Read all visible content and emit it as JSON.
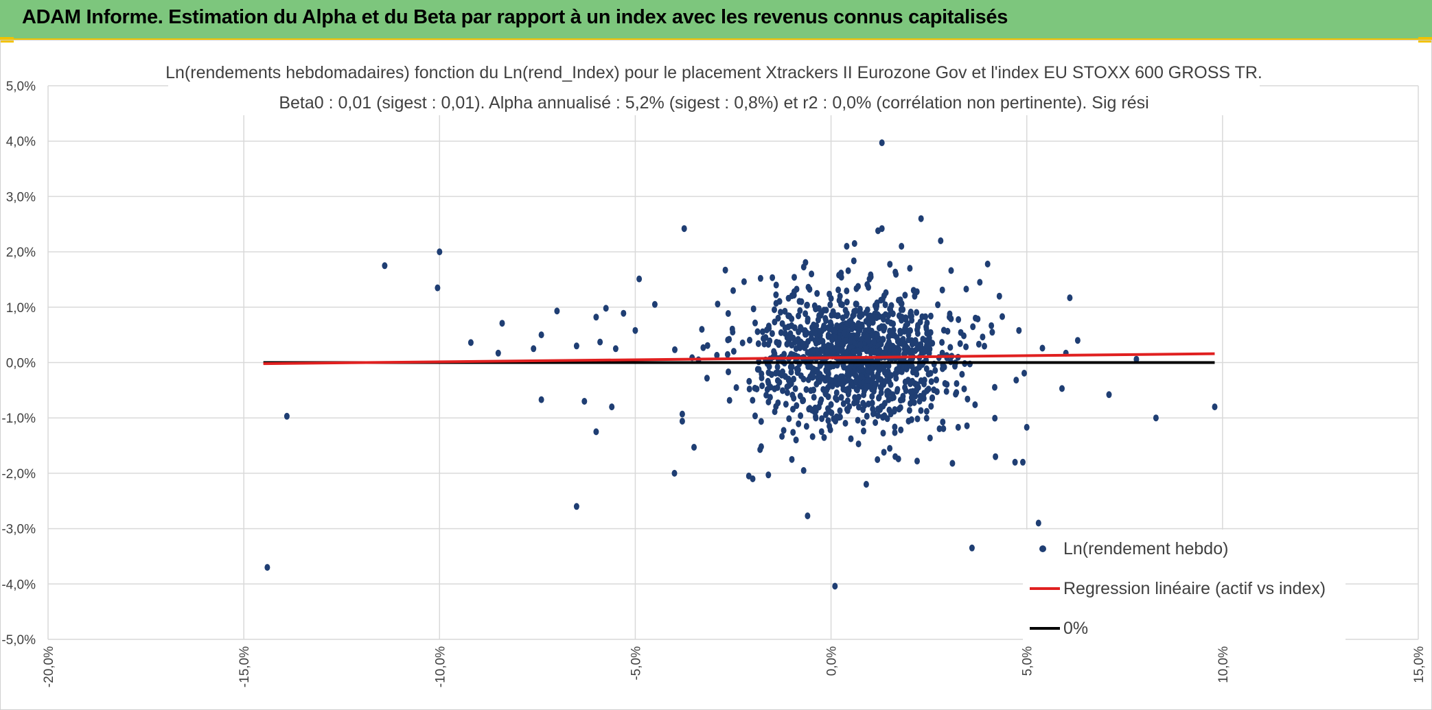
{
  "banner": {
    "title": "ADAM Informe. Estimation du Alpha et du Beta par rapport à un index avec les revenus connus capitalisés"
  },
  "colors": {
    "banner_bg": "#7dc67d",
    "banner_border": "#f2c200",
    "points": "#1f3e73",
    "regression": "#e02020",
    "zero_line": "#000000",
    "grid": "#d9d9d9"
  },
  "chart_data": {
    "type": "scatter",
    "title": "Ln(rendements hebdomadaires) fonction du Ln(rend_Index) pour le placement Xtrackers II Eurozone Gov et l'index EU STOXX 600 GROSS TR.",
    "subtitle": "Beta0 : 0,01 (sigest : 0,01). Alpha annualisé : 5,2% (sigest : 0,8%) et r2 : 0,0% (corrélation non pertinente). Sig rési",
    "xlim": [
      -20,
      15
    ],
    "ylim": [
      -5,
      5
    ],
    "x_ticks": [
      -20,
      -15,
      -10,
      -5,
      0,
      5,
      10,
      15
    ],
    "y_ticks": [
      -5,
      -4,
      -3,
      -2,
      -1,
      0,
      1,
      2,
      3,
      4,
      5
    ],
    "x_tick_labels": [
      "-20,0%",
      "-15,0%",
      "-10,0%",
      "-5,0%",
      "0,0%",
      "5,0%",
      "10,0%",
      "15,0%"
    ],
    "y_tick_labels": [
      "-5,0%",
      "-4,0%",
      "-3,0%",
      "-2,0%",
      "-1,0%",
      "0,0%",
      "1,0%",
      "2,0%",
      "3,0%",
      "4,0%",
      "5,0%"
    ],
    "grid": true,
    "legend_position": "bottom-right",
    "legend": [
      {
        "label": "Ln(rendement hebdo)",
        "kind": "point"
      },
      {
        "label": "Regression linéaire (actif vs index)",
        "kind": "line-red"
      },
      {
        "label": "0%",
        "kind": "line-black"
      }
    ],
    "regression": {
      "x": [
        -14.5,
        9.8
      ],
      "y": [
        -0.02,
        0.16
      ]
    },
    "zero_line": {
      "x": [
        -14.5,
        9.8
      ],
      "y": [
        0,
        0
      ]
    },
    "outliers": [
      [
        -14.4,
        -3.7
      ],
      [
        -13.9,
        -0.97
      ],
      [
        -11.4,
        1.75
      ],
      [
        -10.0,
        2.0
      ],
      [
        -10.05,
        1.35
      ],
      [
        -9.2,
        0.36
      ],
      [
        -8.5,
        0.17
      ],
      [
        -8.4,
        0.71
      ],
      [
        -7.6,
        0.25
      ],
      [
        -7.4,
        -0.67
      ],
      [
        -7.4,
        0.5
      ],
      [
        -7.0,
        0.93
      ],
      [
        -6.5,
        -2.6
      ],
      [
        -6.5,
        0.3
      ],
      [
        -6.3,
        -0.7
      ],
      [
        -6.0,
        -1.25
      ],
      [
        -6.0,
        0.82
      ],
      [
        -5.9,
        0.37
      ],
      [
        -5.75,
        0.98
      ],
      [
        -5.6,
        -0.8
      ],
      [
        -5.5,
        0.25
      ],
      [
        -5.3,
        0.89
      ],
      [
        -5.0,
        0.58
      ],
      [
        -4.9,
        1.51
      ],
      [
        -4.5,
        1.05
      ],
      [
        -4.0,
        -2.0
      ],
      [
        -3.8,
        -0.93
      ],
      [
        -3.8,
        -1.06
      ],
      [
        -3.75,
        2.42
      ],
      [
        -3.5,
        -1.53
      ],
      [
        -3.3,
        0.6
      ],
      [
        -2.7,
        1.67
      ],
      [
        -2.5,
        1.3
      ],
      [
        -2.1,
        -2.05
      ],
      [
        -2.0,
        -2.1
      ],
      [
        -1.8,
        1.52
      ],
      [
        -1.6,
        -2.03
      ],
      [
        -1.4,
        1.4
      ],
      [
        -0.7,
        -1.95
      ],
      [
        -0.6,
        -2.77
      ],
      [
        -0.5,
        1.6
      ],
      [
        0.1,
        -4.04
      ],
      [
        0.4,
        2.1
      ],
      [
        0.6,
        2.15
      ],
      [
        0.9,
        -2.2
      ],
      [
        1.2,
        2.38
      ],
      [
        1.3,
        2.42
      ],
      [
        1.3,
        3.97
      ],
      [
        1.8,
        2.1
      ],
      [
        2.2,
        -1.78
      ],
      [
        2.3,
        2.6
      ],
      [
        2.8,
        2.2
      ],
      [
        3.1,
        -1.82
      ],
      [
        3.6,
        -3.35
      ],
      [
        3.8,
        1.45
      ],
      [
        4.0,
        1.78
      ],
      [
        4.2,
        -1.7
      ],
      [
        4.3,
        1.2
      ],
      [
        4.7,
        -1.8
      ],
      [
        4.9,
        -1.8
      ],
      [
        5.0,
        -1.17
      ],
      [
        5.3,
        -2.9
      ],
      [
        5.4,
        0.26
      ],
      [
        5.9,
        -0.47
      ],
      [
        6.0,
        0.17
      ],
      [
        6.1,
        1.17
      ],
      [
        6.3,
        0.4
      ],
      [
        7.1,
        -0.58
      ],
      [
        7.8,
        0.06
      ],
      [
        8.3,
        -1.0
      ],
      [
        9.8,
        -0.8
      ],
      [
        4.8,
        0.58
      ],
      [
        -1.0,
        -1.75
      ],
      [
        1.5,
        -1.55
      ]
    ],
    "cluster": {
      "count": 1150,
      "mean_x": 0.55,
      "mean_y": 0.08,
      "sd_x": 1.35,
      "sd_y": 0.6
    }
  }
}
